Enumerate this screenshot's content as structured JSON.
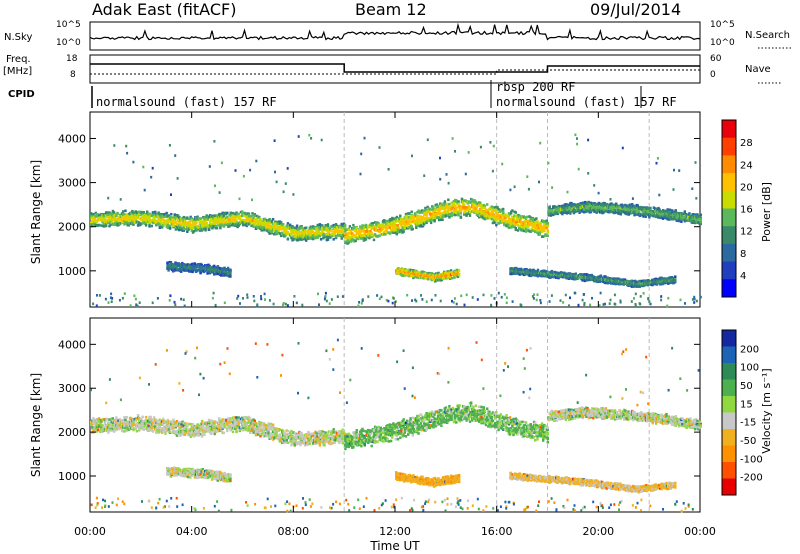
{
  "header": {
    "radar": "Adak East (fitACF)",
    "beam": "Beam 12",
    "date": "09/Jul/2014"
  },
  "panels": {
    "nsky": {
      "label": "N.Sky",
      "ticks": [
        "10^5",
        "10^0"
      ],
      "right_label": "N.Search",
      "right_ticks": [
        "10^5",
        "10^0"
      ]
    },
    "freq": {
      "label_top": "Freq.",
      "label_unit": "[MHz]",
      "ticks": [
        "18",
        "8"
      ],
      "right_label": "Nave",
      "right_ticks": [
        "60",
        "0"
      ]
    },
    "cpid": {
      "label": "CPID",
      "entries": [
        {
          "text": "normalsound (fast) 157 RF"
        },
        {
          "text": "rbsp 200 RF"
        },
        {
          "text": "normalsound (fast) 157 RF"
        }
      ]
    }
  },
  "axes": {
    "ylabel": "Slant Range [km]",
    "xlabel": "Time UT",
    "xticks": [
      "00:00",
      "04:00",
      "08:00",
      "12:00",
      "16:00",
      "20:00",
      "00:00"
    ],
    "yticks": [
      "1000",
      "2000",
      "3000",
      "4000"
    ]
  },
  "colorbars": {
    "power": {
      "label": "Power [dB]",
      "ticks": [
        "28",
        "24",
        "20",
        "16",
        "12",
        "8",
        "4"
      ],
      "colors": [
        "#e8000b",
        "#ff4000",
        "#ff8c00",
        "#ffc000",
        "#c8dc00",
        "#5cb85c",
        "#3a8a6a",
        "#2a6aa0",
        "#1f3fbf",
        "#0000ff"
      ]
    },
    "velocity": {
      "label": "Velocity [m s⁻¹]",
      "ticks": [
        "200",
        "100",
        "50",
        "15",
        "-15",
        "-50",
        "-100",
        "-200"
      ],
      "colors": [
        "#1428a0",
        "#1e64b4",
        "#2e8b57",
        "#4caf50",
        "#90d840",
        "#c8c8c8",
        "#f0b020",
        "#ff9000",
        "#ff5000",
        "#e80000"
      ]
    }
  },
  "chart_data": [
    {
      "type": "heatmap",
      "title": "Power",
      "xlabel": "Time UT",
      "ylabel": "Slant Range [km]",
      "xlim_hours": [
        0,
        24
      ],
      "ylim": [
        180,
        4600
      ],
      "color_scale": "Power [dB]",
      "clim": [
        0,
        30
      ],
      "bands": [
        {
          "t": [
            0.0,
            2.0,
            4.0,
            6.0,
            8.0,
            10.0
          ],
          "center_km": [
            2150,
            2200,
            2050,
            2200,
            1850,
            1900
          ],
          "width_km": 380,
          "peak_db": 20
        },
        {
          "t": [
            10.0,
            11.5,
            13.0,
            14.0,
            15.0,
            16.5,
            18.0
          ],
          "center_km": [
            1800,
            1950,
            2200,
            2400,
            2450,
            2150,
            1950
          ],
          "width_km": 450,
          "peak_db": 22
        },
        {
          "t": [
            18.0,
            19.5,
            21.0,
            22.5,
            24.0
          ],
          "center_km": [
            2350,
            2450,
            2400,
            2300,
            2150
          ],
          "width_km": 260,
          "peak_db": 14
        },
        {
          "t": [
            3.0,
            4.5,
            5.5
          ],
          "center_km": [
            1100,
            1050,
            950
          ],
          "width_km": 220,
          "peak_db": 10
        },
        {
          "t": [
            12.0,
            13.5,
            14.5
          ],
          "center_km": [
            1000,
            850,
            950
          ],
          "width_km": 200,
          "peak_db": 24
        },
        {
          "t": [
            16.5,
            19.5,
            21.5,
            23.0
          ],
          "center_km": [
            1000,
            850,
            700,
            800
          ],
          "width_km": 160,
          "peak_db": 12
        }
      ]
    },
    {
      "type": "heatmap",
      "title": "Velocity",
      "xlabel": "Time UT",
      "ylabel": "Slant Range [km]",
      "xlim_hours": [
        0,
        24
      ],
      "ylim": [
        180,
        4600
      ],
      "color_scale": "Velocity [m s⁻¹]",
      "clim": [
        -200,
        200
      ],
      "bands": [
        {
          "t": [
            0.0,
            2.0,
            4.0,
            6.0,
            8.0,
            10.0
          ],
          "center_km": [
            2150,
            2200,
            2050,
            2200,
            1850,
            1900
          ],
          "width_km": 380,
          "typical_vel": 0
        },
        {
          "t": [
            10.0,
            11.5,
            13.0,
            14.0,
            15.0,
            16.5,
            18.0
          ],
          "center_km": [
            1800,
            1950,
            2200,
            2400,
            2450,
            2150,
            1950
          ],
          "width_km": 450,
          "typical_vel": 20
        },
        {
          "t": [
            18.0,
            19.5,
            21.0,
            22.5,
            24.0
          ],
          "center_km": [
            2350,
            2450,
            2400,
            2300,
            2150
          ],
          "width_km": 260,
          "typical_vel": 0
        },
        {
          "t": [
            3.0,
            4.5,
            5.5
          ],
          "center_km": [
            1100,
            1050,
            950
          ],
          "width_km": 220,
          "typical_vel": 0
        },
        {
          "t": [
            12.0,
            13.5,
            14.5
          ],
          "center_km": [
            1000,
            850,
            950
          ],
          "width_km": 200,
          "typical_vel": -40
        },
        {
          "t": [
            16.5,
            19.5,
            21.5,
            23.0
          ],
          "center_km": [
            1000,
            850,
            700,
            800
          ],
          "width_km": 160,
          "typical_vel": -20
        }
      ]
    }
  ]
}
